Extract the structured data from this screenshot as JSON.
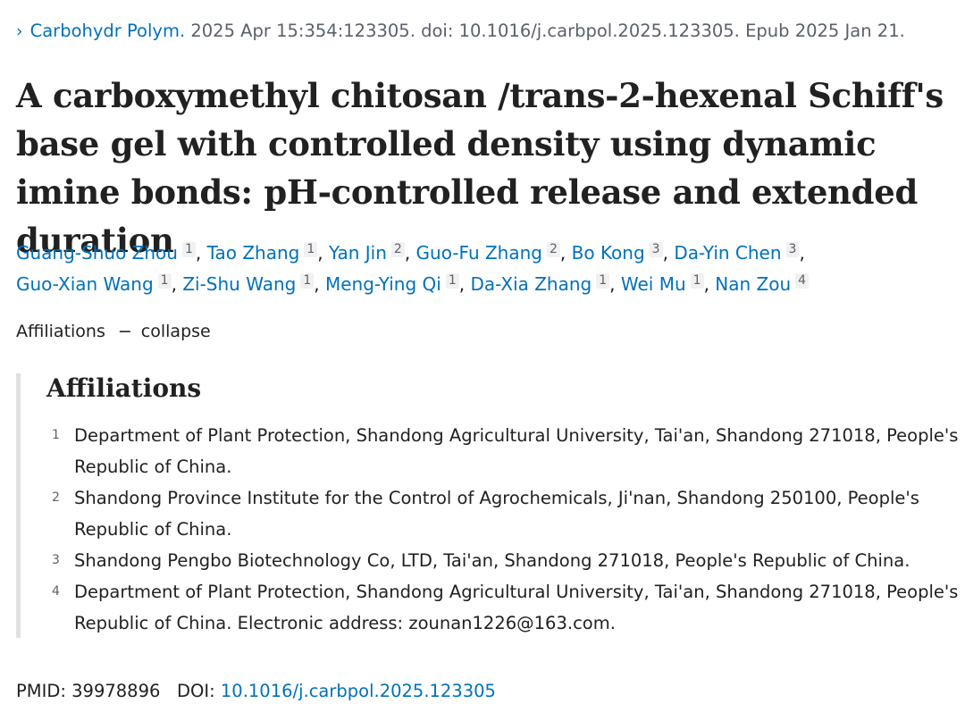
{
  "journal": {
    "chevron": "›",
    "name": "Carbohydr Polym.",
    "citation": "2025 Apr 15:354:123305. doi: 10.1016/j.carbpol.2025.123305. Epub 2025 Jan 21."
  },
  "title": "A carboxymethyl chitosan /trans-2-hexenal Schiff's base gel with controlled density using dynamic imine bonds: pH-controlled release and extended duration",
  "authors": [
    {
      "name": "Guang-Shuo Zhou",
      "aff": "1"
    },
    {
      "name": "Tao Zhang",
      "aff": "1"
    },
    {
      "name": "Yan Jin",
      "aff": "2"
    },
    {
      "name": "Guo-Fu Zhang",
      "aff": "2"
    },
    {
      "name": "Bo Kong",
      "aff": "3"
    },
    {
      "name": "Da-Yin Chen",
      "aff": "3"
    },
    {
      "name": "Guo-Xian Wang",
      "aff": "1"
    },
    {
      "name": "Zi-Shu Wang",
      "aff": "1"
    },
    {
      "name": "Meng-Ying Qi",
      "aff": "1"
    },
    {
      "name": "Da-Xia Zhang",
      "aff": "1"
    },
    {
      "name": "Wei Mu",
      "aff": "1"
    },
    {
      "name": "Nan Zou",
      "aff": "4"
    }
  ],
  "affiliations_toggle": {
    "label": "Affiliations",
    "dash": "−",
    "action": "collapse"
  },
  "affiliations": {
    "heading": "Affiliations",
    "items": [
      {
        "num": "1",
        "text": "Department of Plant Protection, Shandong Agricultural University, Tai'an, Shandong 271018, People's Republic of China."
      },
      {
        "num": "2",
        "text": "Shandong Province Institute for the Control of Agrochemicals, Ji'nan, Shandong 250100, People's Republic of China."
      },
      {
        "num": "3",
        "text": "Shandong Pengbo Biotechnology Co, LTD, Tai'an, Shandong 271018, People's Republic of China."
      },
      {
        "num": "4",
        "text": "Department of Plant Protection, Shandong Agricultural University, Tai'an, Shandong 271018, People's Republic of China. Electronic address: zounan1226@163.com."
      }
    ]
  },
  "ids": {
    "pmid_label": "PMID:",
    "pmid": "39978896",
    "doi_label": "DOI:",
    "doi": "10.1016/j.carbpol.2025.123305"
  }
}
